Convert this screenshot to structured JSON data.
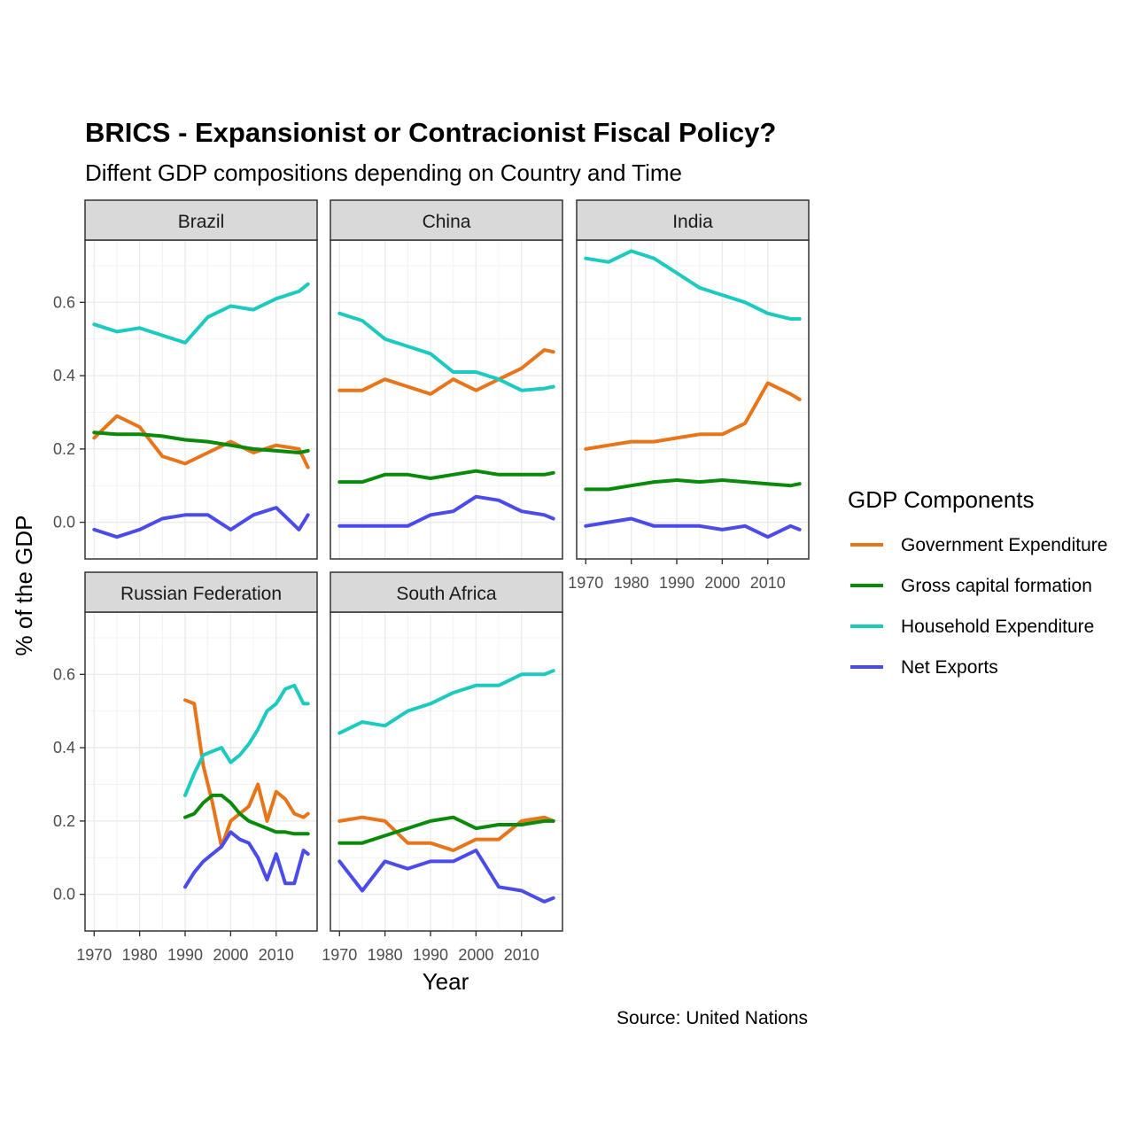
{
  "chart_data": {
    "type": "line",
    "title": "BRICS - Expansionist or Contracionist Fiscal Policy?",
    "subtitle": "Diffent GDP compositions depending on Country and Time",
    "xlabel": "Year",
    "ylabel": "% of the GDP",
    "caption": "Source: United Nations",
    "legend_title": "GDP Components",
    "legend_position": "right",
    "grid": true,
    "xlim": [
      1968,
      2019
    ],
    "ylim": [
      -0.1,
      0.77
    ],
    "x_ticks": [
      1970,
      1980,
      1990,
      2000,
      2010
    ],
    "x_tick_labels": [
      "1970",
      "1980",
      "1990",
      "2000",
      "2010"
    ],
    "y_ticks": [
      0.0,
      0.2,
      0.4,
      0.6
    ],
    "y_tick_labels": [
      "0.0",
      "0.2",
      "0.4",
      "0.6"
    ],
    "series_meta": [
      {
        "name": "Government Expenditure",
        "color": "#E8751A"
      },
      {
        "name": "Gross capital formation",
        "color": "#0A8A0A"
      },
      {
        "name": "Household Expenditure",
        "color": "#1CCAC0"
      },
      {
        "name": "Net Exports",
        "color": "#4B4BEB"
      }
    ],
    "panels": [
      {
        "name": "Brazil",
        "x": [
          1970,
          1975,
          1980,
          1985,
          1990,
          1995,
          2000,
          2005,
          2010,
          2015,
          2017
        ],
        "series": [
          {
            "name": "Government Expenditure",
            "values": [
              0.23,
              0.29,
              0.26,
              0.18,
              0.16,
              0.19,
              0.22,
              0.19,
              0.21,
              0.2,
              0.15
            ]
          },
          {
            "name": "Gross capital formation",
            "values": [
              0.245,
              0.24,
              0.24,
              0.235,
              0.225,
              0.22,
              0.21,
              0.2,
              0.195,
              0.19,
              0.195
            ]
          },
          {
            "name": "Household Expenditure",
            "values": [
              0.54,
              0.52,
              0.53,
              0.51,
              0.49,
              0.56,
              0.59,
              0.58,
              0.61,
              0.63,
              0.65
            ]
          },
          {
            "name": "Net Exports",
            "values": [
              -0.02,
              -0.04,
              -0.02,
              0.01,
              0.02,
              0.02,
              -0.02,
              0.02,
              0.04,
              -0.02,
              0.02
            ]
          }
        ]
      },
      {
        "name": "China",
        "x": [
          1970,
          1975,
          1980,
          1985,
          1990,
          1995,
          2000,
          2005,
          2010,
          2015,
          2017
        ],
        "series": [
          {
            "name": "Government Expenditure",
            "values": [
              0.36,
              0.36,
              0.39,
              0.37,
              0.35,
              0.39,
              0.36,
              0.39,
              0.42,
              0.47,
              0.465
            ]
          },
          {
            "name": "Gross capital formation",
            "values": [
              0.11,
              0.11,
              0.13,
              0.13,
              0.12,
              0.13,
              0.14,
              0.13,
              0.13,
              0.13,
              0.135
            ]
          },
          {
            "name": "Household Expenditure",
            "values": [
              0.57,
              0.55,
              0.5,
              0.48,
              0.46,
              0.41,
              0.41,
              0.39,
              0.36,
              0.365,
              0.37
            ]
          },
          {
            "name": "Net Exports",
            "values": [
              -0.01,
              -0.01,
              -0.01,
              -0.01,
              0.02,
              0.03,
              0.07,
              0.06,
              0.03,
              0.02,
              0.01
            ]
          }
        ]
      },
      {
        "name": "India",
        "x": [
          1970,
          1975,
          1980,
          1985,
          1990,
          1995,
          2000,
          2005,
          2010,
          2015,
          2017
        ],
        "series": [
          {
            "name": "Government Expenditure",
            "values": [
              0.2,
              0.21,
              0.22,
              0.22,
              0.23,
              0.24,
              0.24,
              0.27,
              0.38,
              0.35,
              0.335
            ]
          },
          {
            "name": "Gross capital formation",
            "values": [
              0.09,
              0.09,
              0.1,
              0.11,
              0.115,
              0.11,
              0.115,
              0.11,
              0.105,
              0.1,
              0.105
            ]
          },
          {
            "name": "Household Expenditure",
            "values": [
              0.72,
              0.71,
              0.74,
              0.72,
              0.68,
              0.64,
              0.62,
              0.6,
              0.57,
              0.555,
              0.555
            ]
          },
          {
            "name": "Net Exports",
            "values": [
              -0.01,
              0.0,
              0.01,
              -0.01,
              -0.01,
              -0.01,
              -0.02,
              -0.01,
              -0.04,
              -0.01,
              -0.02
            ]
          }
        ]
      },
      {
        "name": "Russian Federation",
        "x": [
          1990,
          1992,
          1994,
          1996,
          1998,
          2000,
          2002,
          2004,
          2006,
          2008,
          2010,
          2012,
          2014,
          2016,
          2017
        ],
        "series": [
          {
            "name": "Government Expenditure",
            "values": [
              0.53,
              0.52,
              0.35,
              0.25,
              0.13,
              0.2,
              0.22,
              0.24,
              0.3,
              0.2,
              0.28,
              0.26,
              0.22,
              0.21,
              0.22
            ]
          },
          {
            "name": "Gross capital formation",
            "values": [
              0.21,
              0.22,
              0.25,
              0.27,
              0.27,
              0.25,
              0.22,
              0.2,
              0.19,
              0.18,
              0.17,
              0.17,
              0.165,
              0.165,
              0.165
            ]
          },
          {
            "name": "Household Expenditure",
            "values": [
              0.27,
              0.33,
              0.38,
              0.39,
              0.4,
              0.36,
              0.38,
              0.41,
              0.45,
              0.5,
              0.52,
              0.56,
              0.57,
              0.52,
              0.52
            ]
          },
          {
            "name": "Net Exports",
            "values": [
              0.02,
              0.06,
              0.09,
              0.11,
              0.13,
              0.17,
              0.15,
              0.14,
              0.1,
              0.04,
              0.11,
              0.03,
              0.03,
              0.12,
              0.11
            ]
          }
        ]
      },
      {
        "name": "South Africa",
        "x": [
          1970,
          1975,
          1980,
          1985,
          1990,
          1995,
          2000,
          2005,
          2010,
          2015,
          2017
        ],
        "series": [
          {
            "name": "Government Expenditure",
            "values": [
              0.2,
              0.21,
              0.2,
              0.14,
              0.14,
              0.12,
              0.15,
              0.15,
              0.2,
              0.21,
              0.2
            ]
          },
          {
            "name": "Gross capital formation",
            "values": [
              0.14,
              0.14,
              0.16,
              0.18,
              0.2,
              0.21,
              0.18,
              0.19,
              0.19,
              0.2,
              0.2
            ]
          },
          {
            "name": "Household Expenditure",
            "values": [
              0.44,
              0.47,
              0.46,
              0.5,
              0.52,
              0.55,
              0.57,
              0.57,
              0.6,
              0.6,
              0.61
            ]
          },
          {
            "name": "Net Exports",
            "values": [
              0.09,
              0.01,
              0.09,
              0.07,
              0.09,
              0.09,
              0.12,
              0.02,
              0.01,
              -0.02,
              -0.01
            ]
          }
        ]
      }
    ]
  }
}
